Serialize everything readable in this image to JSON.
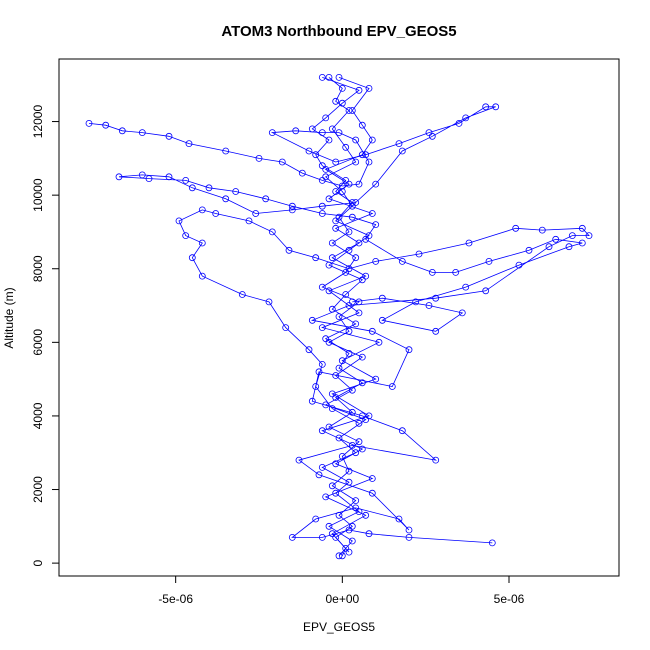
{
  "chart_data": {
    "type": "scatter",
    "title": "ATOM3 Northbound EPV_GEOS5",
    "xlabel": "EPV_GEOS5",
    "ylabel": "Altitude (m)",
    "xlim": [
      -8.5e-06,
      8.3e-06
    ],
    "ylim": [
      -350,
      13700
    ],
    "xticks": [
      -5e-06,
      0,
      5e-06
    ],
    "xtick_labels": [
      "-5e-06",
      "0e+00",
      "5e-06"
    ],
    "yticks": [
      0,
      2000,
      4000,
      6000,
      8000,
      10000,
      12000
    ],
    "ytick_labels": [
      "0",
      "2000",
      "4000",
      "6000",
      "8000",
      "10000",
      "12000"
    ],
    "grid": false,
    "legend": "none",
    "marker": "open-circle",
    "connected": true,
    "color": "#0000ff",
    "series": [
      {
        "values": [
          [
            0.0,
            200
          ],
          [
            1e-07,
            400
          ],
          [
            -2e-07,
            700
          ],
          [
            3e-07,
            1000
          ],
          [
            -1e-07,
            1300
          ],
          [
            4e-07,
            1700
          ],
          [
            -3e-07,
            2100
          ],
          [
            2e-07,
            2500
          ],
          [
            0.0,
            2900
          ],
          [
            5e-07,
            3300
          ],
          [
            -4e-07,
            3700
          ],
          [
            3e-07,
            4100
          ],
          [
            -2e-07,
            4500
          ],
          [
            6e-07,
            4900
          ],
          [
            -1e-07,
            5300
          ],
          [
            2e-07,
            5700
          ],
          [
            -5e-07,
            6100
          ],
          [
            4e-07,
            6500
          ],
          [
            -3e-07,
            6900
          ],
          [
            1e-07,
            7300
          ],
          [
            6e-07,
            7700
          ],
          [
            -4e-07,
            8100
          ],
          [
            2e-07,
            8500
          ],
          [
            8e-07,
            8900
          ],
          [
            -2e-07,
            9300
          ],
          [
            3e-07,
            9700
          ],
          [
            0.0,
            10100
          ],
          [
            -5e-07,
            10500
          ],
          [
            4e-07,
            10900
          ],
          [
            1e-07,
            11300
          ],
          [
            -3e-07,
            11800
          ],
          [
            2e-07,
            12300
          ],
          [
            -2e-07,
            12550
          ],
          [
            0.0,
            12900
          ],
          [
            -4e-07,
            13200
          ]
        ]
      },
      {
        "values": [
          [
            4.5e-06,
            550
          ],
          [
            2e-06,
            700
          ],
          [
            8e-07,
            800
          ],
          [
            2e-07,
            900
          ],
          [
            -6e-07,
            700
          ],
          [
            -1.5e-06,
            700
          ],
          [
            -8e-07,
            1200
          ],
          [
            4e-07,
            1500
          ],
          [
            1.7e-06,
            1200
          ],
          [
            2e-06,
            900
          ],
          [
            9e-07,
            1900
          ],
          [
            -7e-07,
            2400
          ],
          [
            -1.3e-06,
            2800
          ],
          [
            3e-07,
            3200
          ],
          [
            2.8e-06,
            2800
          ],
          [
            1.8e-06,
            3600
          ],
          [
            6e-07,
            4000
          ],
          [
            -9e-07,
            4400
          ],
          [
            -7e-07,
            5200
          ],
          [
            1.5e-06,
            4800
          ],
          [
            2e-06,
            5800
          ],
          [
            9e-07,
            6300
          ],
          [
            -9e-07,
            6600
          ],
          [
            2e-07,
            7000
          ],
          [
            2.8e-06,
            7200
          ],
          [
            4.3e-06,
            7400
          ],
          [
            6.2e-06,
            8600
          ],
          [
            6.9e-06,
            8900
          ],
          [
            7.4e-06,
            8900
          ],
          [
            7.2e-06,
            9100
          ],
          [
            6e-06,
            9050
          ],
          [
            5.2e-06,
            9100
          ],
          [
            3.8e-06,
            8700
          ],
          [
            2.3e-06,
            8400
          ],
          [
            1e-06,
            8200
          ],
          [
            2e-07,
            8000
          ],
          [
            -8e-07,
            8300
          ],
          [
            -1.6e-06,
            8500
          ],
          [
            -2.1e-06,
            9000
          ],
          [
            -2.8e-06,
            9300
          ],
          [
            -3.8e-06,
            9500
          ],
          [
            -4.2e-06,
            9600
          ],
          [
            -4.9e-06,
            9300
          ],
          [
            -4.7e-06,
            8900
          ],
          [
            -4.2e-06,
            8700
          ],
          [
            -4.5e-06,
            8300
          ],
          [
            -4.2e-06,
            7800
          ],
          [
            -3e-06,
            7300
          ],
          [
            -2.2e-06,
            7100
          ],
          [
            -1.7e-06,
            6400
          ],
          [
            -1e-06,
            5800
          ],
          [
            -6e-07,
            5400
          ],
          [
            -8e-07,
            4800
          ],
          [
            -3e-07,
            4200
          ],
          [
            5e-07,
            3800
          ]
        ]
      },
      {
        "values": [
          [
            -7.6e-06,
            11950
          ],
          [
            -7.1e-06,
            11900
          ],
          [
            -6.6e-06,
            11750
          ],
          [
            -6e-06,
            11700
          ],
          [
            -5.2e-06,
            11600
          ],
          [
            -4.6e-06,
            11400
          ],
          [
            -3.5e-06,
            11200
          ],
          [
            -2.5e-06,
            11000
          ],
          [
            -1.8e-06,
            10900
          ],
          [
            -1.2e-06,
            10600
          ],
          [
            -6e-07,
            10400
          ],
          [
            0.0,
            10250
          ],
          [
            5e-07,
            10300
          ],
          [
            8e-07,
            10900
          ],
          [
            4e-07,
            11500
          ],
          [
            -1e-07,
            11700
          ],
          [
            -6e-07,
            11700
          ],
          [
            -1.4e-06,
            11750
          ],
          [
            -2.1e-06,
            11700
          ],
          [
            -1e-06,
            11200
          ],
          [
            -2e-07,
            10900
          ],
          [
            7e-07,
            11100
          ],
          [
            1.7e-06,
            11400
          ],
          [
            2.6e-06,
            11700
          ],
          [
            3.5e-06,
            11950
          ],
          [
            4.3e-06,
            12400
          ],
          [
            4.6e-06,
            12400
          ],
          [
            3.7e-06,
            12100
          ],
          [
            2.7e-06,
            11600
          ],
          [
            1.8e-06,
            11200
          ],
          [
            1e-06,
            10300
          ],
          [
            4e-07,
            9800
          ],
          [
            -6e-07,
            9700
          ],
          [
            -1.5e-06,
            9600
          ],
          [
            -2.6e-06,
            9500
          ],
          [
            -3.5e-06,
            9900
          ],
          [
            -4.5e-06,
            10200
          ],
          [
            -5.2e-06,
            10500
          ],
          [
            -6e-06,
            10550
          ],
          [
            -6.7e-06,
            10500
          ],
          [
            -5.8e-06,
            10450
          ],
          [
            -4.7e-06,
            10400
          ],
          [
            -4e-06,
            10200
          ],
          [
            -3.2e-06,
            10100
          ],
          [
            -2.3e-06,
            9900
          ],
          [
            -1.5e-06,
            9700
          ],
          [
            -6e-07,
            9500
          ],
          [
            3e-07,
            9400
          ],
          [
            1e-06,
            9200
          ],
          [
            7e-07,
            8800
          ],
          [
            1.8e-06,
            8200
          ],
          [
            2.7e-06,
            7900
          ],
          [
            3.4e-06,
            7900
          ],
          [
            4.4e-06,
            8200
          ],
          [
            5.6e-06,
            8500
          ],
          [
            6.4e-06,
            8800
          ],
          [
            7.2e-06,
            8700
          ],
          [
            6.8e-06,
            8600
          ],
          [
            5.3e-06,
            8100
          ],
          [
            3.7e-06,
            7500
          ],
          [
            2.2e-06,
            7100
          ],
          [
            1.2e-06,
            6600
          ],
          [
            2.8e-06,
            6300
          ],
          [
            3.6e-06,
            6800
          ],
          [
            2.6e-06,
            7000
          ],
          [
            1.2e-06,
            7200
          ],
          [
            3e-07,
            7100
          ]
        ]
      },
      {
        "values": [
          [
            2e-07,
            300
          ],
          [
            -3e-07,
            800
          ],
          [
            7e-07,
            1300
          ],
          [
            -5e-07,
            1800
          ],
          [
            9e-07,
            2300
          ],
          [
            -2e-07,
            2700
          ],
          [
            6e-07,
            3100
          ],
          [
            -6e-07,
            3600
          ],
          [
            8e-07,
            4000
          ],
          [
            -3e-07,
            4600
          ],
          [
            1e-06,
            5000
          ],
          [
            0.0,
            5500
          ],
          [
            1.1e-06,
            6000
          ],
          [
            -6e-07,
            6400
          ],
          [
            5e-07,
            6800
          ],
          [
            -4e-07,
            7400
          ],
          [
            7e-07,
            7800
          ],
          [
            -3e-07,
            8300
          ],
          [
            5e-07,
            8700
          ],
          [
            -2e-07,
            9100
          ],
          [
            9e-07,
            9500
          ],
          [
            -4e-07,
            9900
          ],
          [
            2e-07,
            10300
          ],
          [
            -5e-07,
            10700
          ],
          [
            6e-07,
            11100
          ],
          [
            9e-07,
            11500
          ],
          [
            6e-07,
            11900
          ],
          [
            3e-07,
            12300
          ],
          [
            8e-07,
            12900
          ],
          [
            -1e-07,
            13200
          ]
        ]
      },
      {
        "values": [
          [
            -1e-07,
            200
          ],
          [
            3e-07,
            600
          ],
          [
            -4e-07,
            1000
          ],
          [
            5e-07,
            1400
          ],
          [
            -2e-07,
            1900
          ],
          [
            2e-07,
            2200
          ],
          [
            -6e-07,
            2600
          ],
          [
            4e-07,
            3000
          ],
          [
            -1e-07,
            3400
          ],
          [
            7e-07,
            3900
          ],
          [
            -5e-07,
            4300
          ],
          [
            3e-07,
            4700
          ],
          [
            -2e-07,
            5100
          ],
          [
            6e-07,
            5600
          ],
          [
            -4e-07,
            6000
          ],
          [
            2e-07,
            6300
          ],
          [
            -1e-07,
            6700
          ],
          [
            5e-07,
            7100
          ],
          [
            -6e-07,
            7500
          ],
          [
            1e-07,
            7900
          ],
          [
            4e-07,
            8300
          ],
          [
            -3e-07,
            8700
          ],
          [
            2e-07,
            9000
          ],
          [
            -1e-07,
            9400
          ],
          [
            3e-07,
            9800
          ],
          [
            -2e-07,
            10100
          ],
          [
            1e-07,
            10400
          ],
          [
            -6e-07,
            10800
          ],
          [
            -8e-07,
            11100
          ],
          [
            -4e-07,
            11500
          ],
          [
            -9e-07,
            11800
          ],
          [
            -5e-07,
            12100
          ],
          [
            0.0,
            12500
          ],
          [
            5e-07,
            12850
          ],
          [
            -6e-07,
            13200
          ]
        ]
      }
    ]
  }
}
